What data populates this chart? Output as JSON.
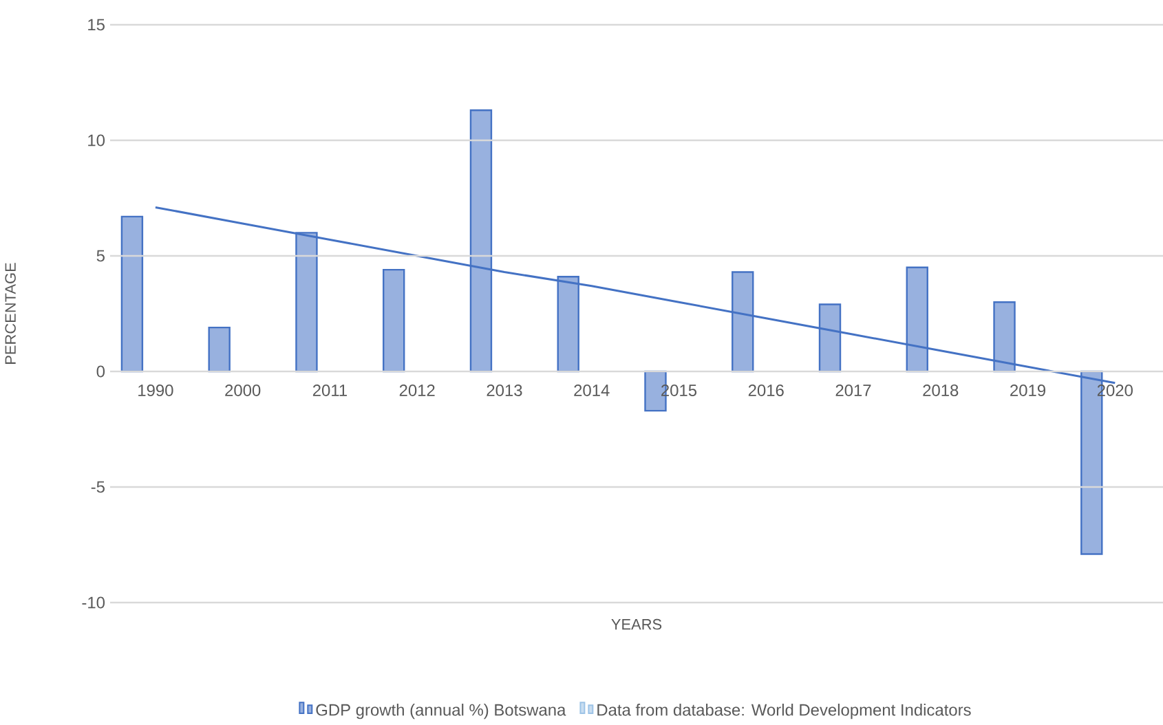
{
  "chart_data": {
    "type": "bar",
    "xlabel": "YEARS",
    "ylabel": "PERCENTAGE",
    "categories": [
      "1990",
      "2000",
      "2011",
      "2012",
      "2013",
      "2014",
      "2015",
      "2016",
      "2017",
      "2018",
      "2019",
      "2020"
    ],
    "series": [
      {
        "name": "GDP growth (annual %) Botswana",
        "color": "#4472c4",
        "values": [
          6.7,
          1.9,
          6.0,
          4.4,
          11.3,
          4.1,
          -1.7,
          4.3,
          2.9,
          4.5,
          3.0,
          -7.9
        ]
      },
      {
        "name": "Data from database: World Development Indicators",
        "color": "#9dc3e6",
        "values": [
          null,
          null,
          null,
          null,
          null,
          null,
          null,
          null,
          null,
          null,
          null,
          null
        ]
      },
      {
        "type": "line",
        "values": [
          7.1,
          6.4,
          5.7,
          5.0,
          4.3,
          3.7,
          3.0,
          2.3,
          1.6,
          0.9,
          0.2,
          -0.5
        ],
        "color": "#4472c4"
      }
    ],
    "ylim": [
      -10,
      15
    ],
    "yticks": [
      -10,
      -5,
      0,
      5,
      10,
      15
    ],
    "grid": "y",
    "legend": "bottom"
  }
}
